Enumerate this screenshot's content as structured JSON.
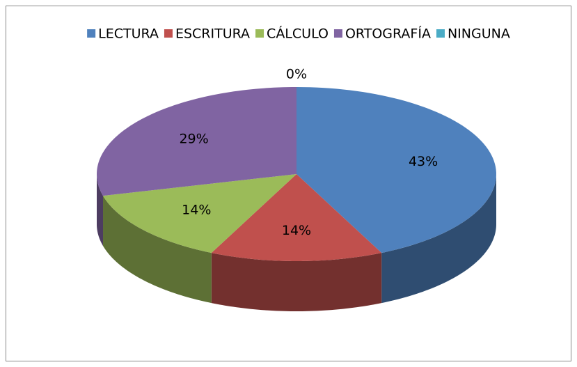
{
  "chart_data": {
    "type": "pie3d",
    "categories": [
      "LECTURA",
      "ESCRITURA",
      "CÁLCULO",
      "ORTOGRAFÍA",
      "NINGUNA"
    ],
    "values": [
      43,
      14,
      14,
      29,
      0
    ],
    "value_labels": [
      "43%",
      "14%",
      "14%",
      "29%",
      "0%"
    ],
    "colors": [
      "#4f81bd",
      "#c0504d",
      "#9bbb59",
      "#8064a2",
      "#4bacc6"
    ],
    "legend": "top"
  }
}
